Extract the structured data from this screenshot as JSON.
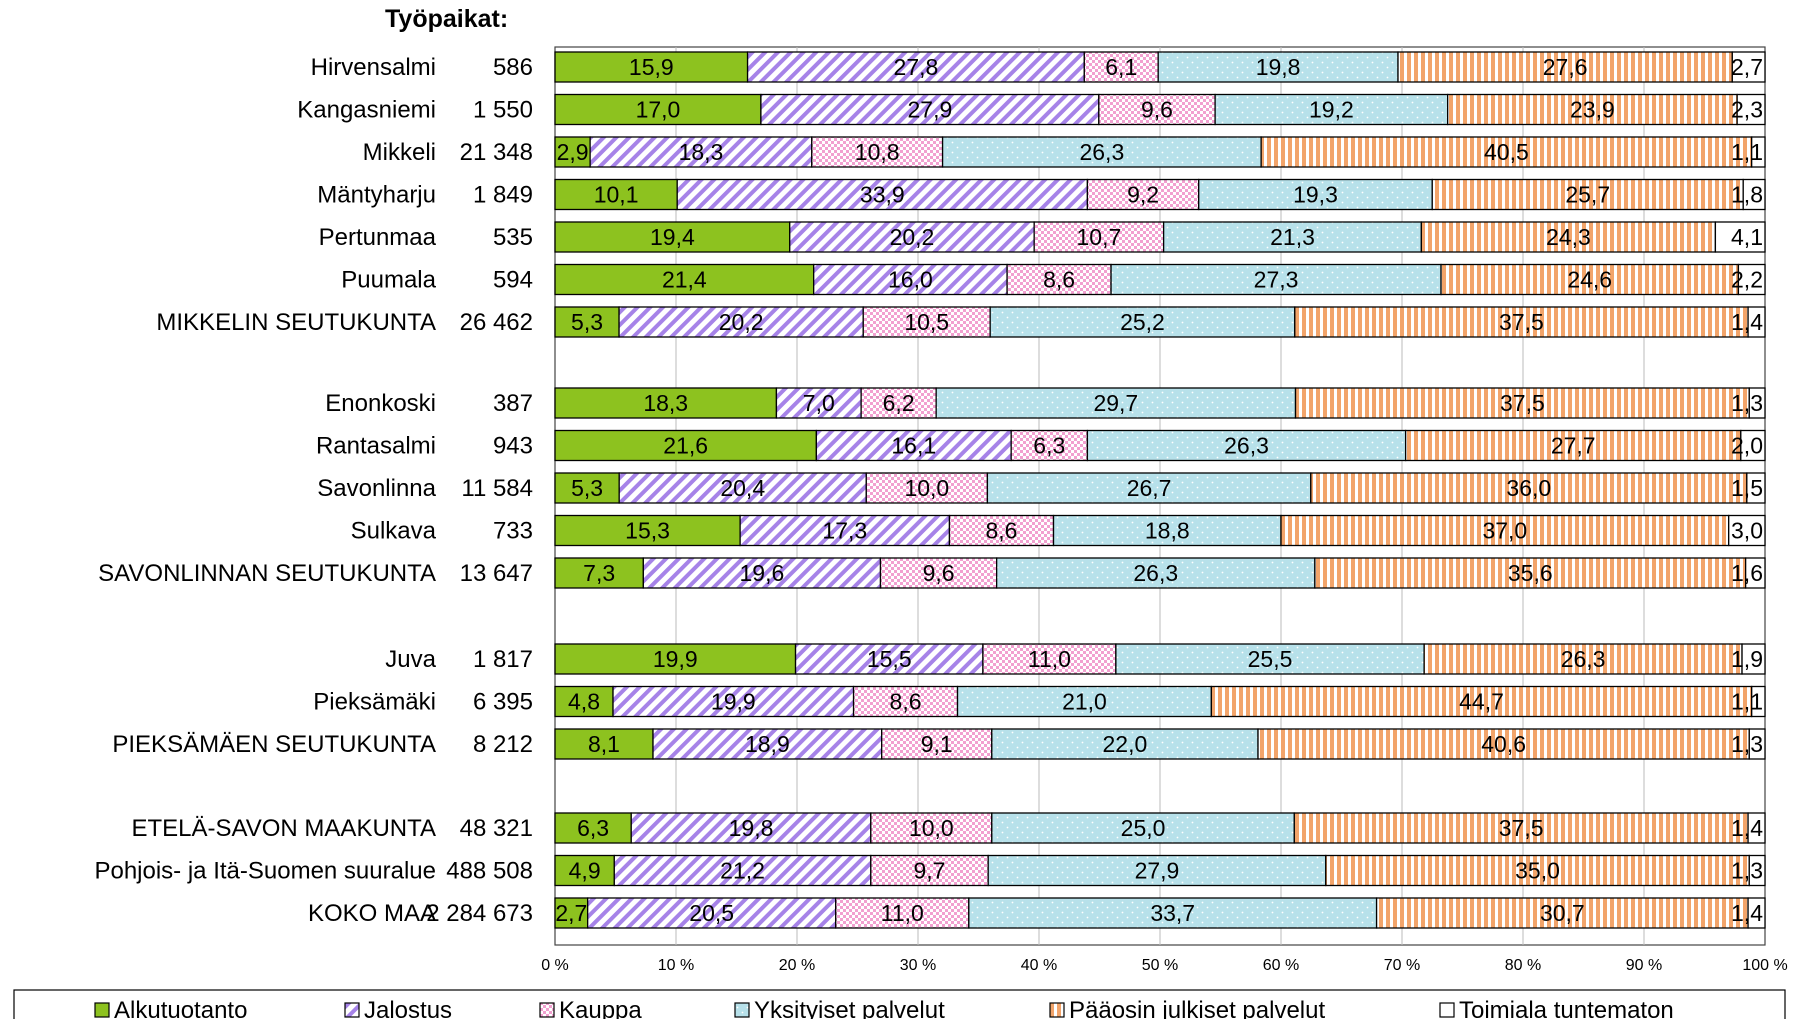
{
  "chart_data": {
    "type": "bar",
    "orientation": "horizontal",
    "stacked": "percent",
    "title": "Työpaikat:",
    "xlim": [
      0,
      100
    ],
    "xticks": [
      "0 %",
      "10 %",
      "20 %",
      "30 %",
      "40 %",
      "50 %",
      "60 %",
      "70 %",
      "80 %",
      "90 %",
      "100 %"
    ],
    "grid": true,
    "legend_position": "bottom",
    "groups": [
      [
        {
          "name": "Hirvensalmi",
          "total": "586",
          "values": [
            15.9,
            27.8,
            6.1,
            19.8,
            27.6,
            2.7
          ],
          "labels": [
            "15,9",
            "27,8",
            "6,1",
            "19,8",
            "27,6",
            "2,7"
          ]
        },
        {
          "name": "Kangasniemi",
          "total": "1 550",
          "values": [
            17.0,
            27.9,
            9.6,
            19.2,
            23.9,
            2.3
          ],
          "labels": [
            "17,0",
            "27,9",
            "9,6",
            "19,2",
            "23,9",
            "2,3"
          ]
        },
        {
          "name": "Mikkeli",
          "total": "21 348",
          "values": [
            2.9,
            18.3,
            10.8,
            26.3,
            40.5,
            1.1
          ],
          "labels": [
            "2,9",
            "18,3",
            "10,8",
            "26,3",
            "40,5",
            "1,1"
          ]
        },
        {
          "name": "Mäntyharju",
          "total": "1 849",
          "values": [
            10.1,
            33.9,
            9.2,
            19.3,
            25.7,
            1.8
          ],
          "labels": [
            "10,1",
            "33,9",
            "9,2",
            "19,3",
            "25,7",
            "1,8"
          ]
        },
        {
          "name": "Pertunmaa",
          "total": "535",
          "values": [
            19.4,
            20.2,
            10.7,
            21.3,
            24.3,
            4.1
          ],
          "labels": [
            "19,4",
            "20,2",
            "10,7",
            "21,3",
            "24,3",
            "4,1"
          ]
        },
        {
          "name": "Puumala",
          "total": "594",
          "values": [
            21.4,
            16.0,
            8.6,
            27.3,
            24.6,
            2.2
          ],
          "labels": [
            "21,4",
            "16,0",
            "8,6",
            "27,3",
            "24,6",
            "2,2"
          ]
        },
        {
          "name": "MIKKELIN SEUTUKUNTA",
          "total": "26 462",
          "values": [
            5.3,
            20.2,
            10.5,
            25.2,
            37.5,
            1.4
          ],
          "labels": [
            "5,3",
            "20,2",
            "10,5",
            "25,2",
            "37,5",
            "1,4"
          ]
        }
      ],
      [
        {
          "name": "Enonkoski",
          "total": "387",
          "values": [
            18.3,
            7.0,
            6.2,
            29.7,
            37.5,
            1.3
          ],
          "labels": [
            "18,3",
            "7,0",
            "6,2",
            "29,7",
            "37,5",
            "1,3"
          ]
        },
        {
          "name": "Rantasalmi",
          "total": "943",
          "values": [
            21.6,
            16.1,
            6.3,
            26.3,
            27.7,
            2.0
          ],
          "labels": [
            "21,6",
            "16,1",
            "6,3",
            "26,3",
            "27,7",
            "2,0"
          ]
        },
        {
          "name": "Savonlinna",
          "total": "11 584",
          "values": [
            5.3,
            20.4,
            10.0,
            26.7,
            36.0,
            1.5
          ],
          "labels": [
            "5,3",
            "20,4",
            "10,0",
            "26,7",
            "36,0",
            "1,5"
          ]
        },
        {
          "name": "Sulkava",
          "total": "733",
          "values": [
            15.3,
            17.3,
            8.6,
            18.8,
            37.0,
            3.0
          ],
          "labels": [
            "15,3",
            "17,3",
            "8,6",
            "18,8",
            "37,0",
            "3,0"
          ]
        },
        {
          "name": "SAVONLINNAN SEUTUKUNTA",
          "total": "13 647",
          "values": [
            7.3,
            19.6,
            9.6,
            26.3,
            35.6,
            1.6
          ],
          "labels": [
            "7,3",
            "19,6",
            "9,6",
            "26,3",
            "35,6",
            "1,6"
          ]
        }
      ],
      [
        {
          "name": "Juva",
          "total": "1 817",
          "values": [
            19.9,
            15.5,
            11.0,
            25.5,
            26.3,
            1.9
          ],
          "labels": [
            "19,9",
            "15,5",
            "11,0",
            "25,5",
            "26,3",
            "1,9"
          ]
        },
        {
          "name": "Pieksämäki",
          "total": "6 395",
          "values": [
            4.8,
            19.9,
            8.6,
            21.0,
            44.7,
            1.1
          ],
          "labels": [
            "4,8",
            "19,9",
            "8,6",
            "21,0",
            "44,7",
            "1,1"
          ]
        },
        {
          "name": "PIEKSÄMÄEN SEUTUKUNTA",
          "total": "8 212",
          "values": [
            8.1,
            18.9,
            9.1,
            22.0,
            40.6,
            1.3
          ],
          "labels": [
            "8,1",
            "18,9",
            "9,1",
            "22,0",
            "40,6",
            "1,3"
          ]
        }
      ],
      [
        {
          "name": "ETELÄ-SAVON MAAKUNTA",
          "total": "48 321",
          "values": [
            6.3,
            19.8,
            10.0,
            25.0,
            37.5,
            1.4
          ],
          "labels": [
            "6,3",
            "19,8",
            "10,0",
            "25,0",
            "37,5",
            "1,4"
          ]
        },
        {
          "name": "Pohjois- ja Itä-Suomen suuralue",
          "total": "488 508",
          "values": [
            4.9,
            21.2,
            9.7,
            27.9,
            35.0,
            1.3
          ],
          "labels": [
            "4,9",
            "21,2",
            "9,7",
            "27,9",
            "35,0",
            "1,3"
          ]
        },
        {
          "name": "KOKO MAA",
          "total": "2 284 673",
          "values": [
            2.7,
            20.5,
            11.0,
            33.7,
            30.7,
            1.4
          ],
          "labels": [
            "2,7",
            "20,5",
            "11,0",
            "33,7",
            "30,7",
            "1,4"
          ]
        }
      ]
    ],
    "series": [
      {
        "name": "Alkutuotanto",
        "color": "#8dc21f",
        "pattern": "solid"
      },
      {
        "name": "Jalostus",
        "color": "#a683e8",
        "pattern": "diagonal"
      },
      {
        "name": "Kauppa",
        "color": "#f2a0d0",
        "pattern": "checker"
      },
      {
        "name": "Yksityiset palvelut",
        "color": "#b7e1ea",
        "pattern": "dots"
      },
      {
        "name": "Pääosin julkiset palvelut",
        "color": "#f2a46a",
        "pattern": "vertical"
      },
      {
        "name": "Toimiala tuntematon",
        "color": "#ffffff",
        "pattern": "solid"
      }
    ]
  }
}
